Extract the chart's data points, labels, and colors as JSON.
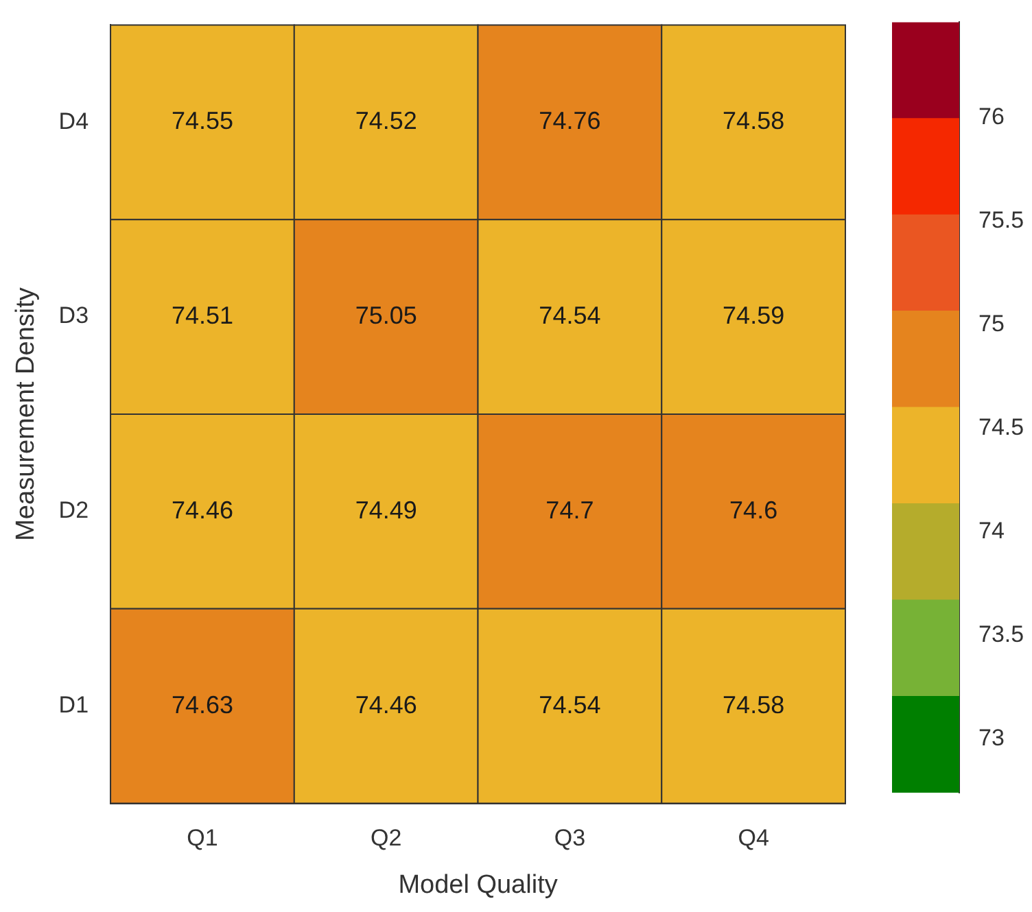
{
  "chart_data": {
    "type": "heatmap",
    "xlabel": "Model Quality",
    "ylabel": "Measurement Density",
    "categories": [
      "Q1",
      "Q2",
      "Q3",
      "Q4"
    ],
    "y_categories": [
      "D4",
      "D3",
      "D2",
      "D1"
    ],
    "cells": [
      [
        74.55,
        74.52,
        74.76,
        74.58
      ],
      [
        74.51,
        75.05,
        74.54,
        74.59
      ],
      [
        74.46,
        74.49,
        74.7,
        74.6
      ],
      [
        74.63,
        74.46,
        74.54,
        74.58
      ]
    ],
    "data_labels": true,
    "clim": [
      72.74,
      76.46
    ],
    "cticks": [
      73,
      73.5,
      74,
      74.5,
      75,
      75.5,
      76
    ],
    "colors": [
      "#007f00",
      "#77b236",
      "#b5ac2c",
      "#ecb42a",
      "#e5841e",
      "#ea5622",
      "#f52800",
      "#9a001e"
    ]
  }
}
